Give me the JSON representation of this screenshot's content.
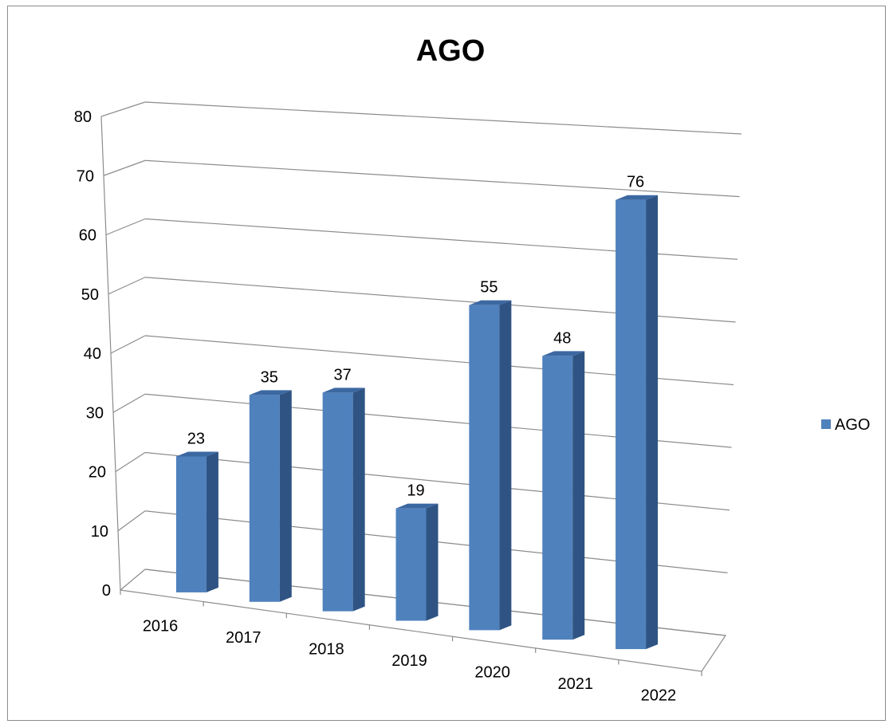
{
  "chart_data": {
    "type": "bar",
    "title": "AGO",
    "categories": [
      "2016",
      "2017",
      "2018",
      "2019",
      "2020",
      "2021",
      "2022"
    ],
    "series": [
      {
        "name": "AGO",
        "values": [
          23,
          35,
          37,
          19,
          55,
          48,
          76
        ]
      }
    ],
    "ylim": [
      0,
      80
    ],
    "yticks": [
      "0",
      "10",
      "20",
      "30",
      "40",
      "50",
      "60",
      "70",
      "80"
    ],
    "grid": true,
    "legend_position": "right",
    "bar_color": "#4f81bd",
    "bar_side_color": "#2f5484",
    "bar_top_color": "#3c68a2"
  }
}
